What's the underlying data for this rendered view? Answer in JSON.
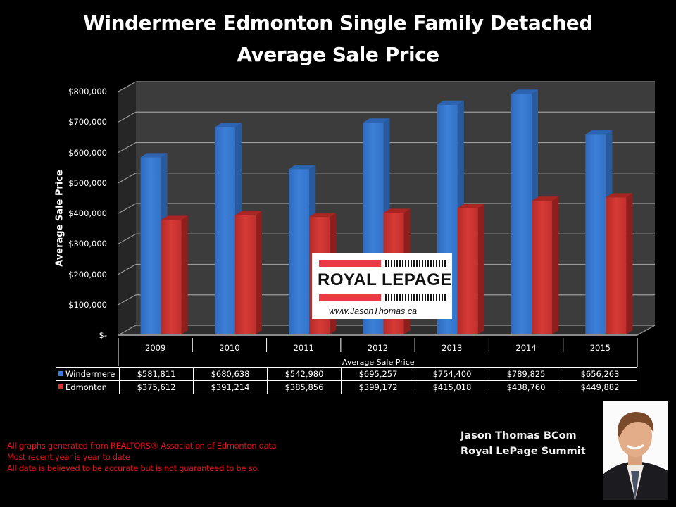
{
  "title": {
    "line1": "Windermere Edmonton Single Family Detached",
    "line2": "Average Sale Price"
  },
  "chart_data": {
    "type": "bar",
    "style": "3d-clustered-column",
    "title": "Windermere Edmonton Single Family Detached Average Sale Price",
    "xlabel": "Average Sale Price",
    "ylabel": "Average Sale Price",
    "categories": [
      "2009",
      "2010",
      "2011",
      "2012",
      "2013",
      "2014",
      "2015"
    ],
    "series": [
      {
        "name": "Windermere",
        "color": "#3a7bd5",
        "values": [
          581811,
          680638,
          542980,
          695257,
          754400,
          789825,
          656263
        ],
        "labels": [
          "$581,811",
          "$680,638",
          "$542,980",
          "$695,257",
          "$754,400",
          "$789,825",
          "$656,263"
        ]
      },
      {
        "name": "Edmonton",
        "color": "#d23430",
        "values": [
          375612,
          391214,
          385856,
          399172,
          415018,
          438760,
          449882
        ],
        "labels": [
          "$375,612",
          "$391,214",
          "$385,856",
          "$399,172",
          "$415,018",
          "$438,760",
          "$449,882"
        ]
      }
    ],
    "ylim": [
      0,
      800000
    ],
    "yticks": [
      "$-",
      "$100,000",
      "$200,000",
      "$300,000",
      "$400,000",
      "$500,000",
      "$600,000",
      "$700,000",
      "$800,000"
    ],
    "grid": true,
    "legend": "data-table"
  },
  "logo": {
    "brand": "ROYAL LEPAGE",
    "url": "www.JasonThomas.ca"
  },
  "disclaimer": {
    "line1": "All graphs generated from REALTORS® Association of Edmonton data",
    "line2": "Most recent year is year to date",
    "line3": "All data is believed to be accurate but is not guaranteed to be so."
  },
  "agent": {
    "name": "Jason Thomas BCom",
    "company": "Royal LePage Summit"
  }
}
